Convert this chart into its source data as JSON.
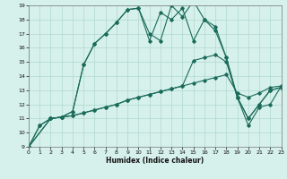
{
  "xlabel": "Humidex (Indice chaleur)",
  "xlim": [
    0,
    23
  ],
  "ylim": [
    9,
    19
  ],
  "yticks": [
    9,
    10,
    11,
    12,
    13,
    14,
    15,
    16,
    17,
    18,
    19
  ],
  "xticks": [
    0,
    1,
    2,
    3,
    4,
    5,
    6,
    7,
    8,
    9,
    10,
    11,
    12,
    13,
    14,
    15,
    16,
    17,
    18,
    19,
    20,
    21,
    22,
    23
  ],
  "bg_color": "#d6f0eb",
  "line_color": "#1a6b5a",
  "grid_color": "#b0d8d0",
  "series1_x": [
    0,
    1,
    2,
    3,
    4,
    5,
    6,
    7,
    8,
    9,
    10,
    11,
    12,
    13,
    14,
    15,
    16,
    17,
    18,
    19,
    20,
    21,
    22,
    23
  ],
  "series1_y": [
    9.0,
    10.5,
    11.0,
    11.1,
    11.5,
    14.8,
    16.3,
    17.0,
    17.8,
    18.7,
    18.8,
    17.0,
    16.5,
    19.0,
    18.2,
    19.3,
    18.0,
    17.2,
    15.3,
    12.5,
    11.0,
    12.0,
    13.0,
    13.2
  ],
  "series2_x": [
    0,
    1,
    2,
    3,
    4,
    5,
    6,
    7,
    8,
    9,
    10,
    11,
    12,
    13,
    14,
    15,
    16,
    17,
    18,
    19,
    20,
    21,
    22,
    23
  ],
  "series2_y": [
    9.0,
    10.5,
    11.0,
    11.1,
    11.5,
    14.8,
    16.3,
    17.0,
    17.8,
    18.7,
    18.8,
    16.5,
    18.5,
    18.0,
    18.8,
    16.5,
    18.0,
    17.5,
    15.3,
    12.5,
    11.0,
    12.0,
    13.0,
    13.2
  ],
  "series3_x": [
    0,
    2,
    3,
    4,
    5,
    6,
    7,
    8,
    9,
    10,
    11,
    12,
    13,
    14,
    15,
    16,
    17,
    18,
    19,
    20,
    21,
    22,
    23
  ],
  "series3_y": [
    9.0,
    11.0,
    11.1,
    11.2,
    11.4,
    11.6,
    11.8,
    12.0,
    12.3,
    12.5,
    12.7,
    12.9,
    13.1,
    13.3,
    13.5,
    13.7,
    13.9,
    14.1,
    12.8,
    12.5,
    12.8,
    13.2,
    13.3
  ],
  "series4_x": [
    0,
    2,
    3,
    4,
    5,
    6,
    7,
    8,
    9,
    10,
    11,
    12,
    13,
    14,
    15,
    16,
    17,
    18,
    19,
    20,
    21,
    22,
    23
  ],
  "series4_y": [
    9.0,
    11.0,
    11.1,
    11.2,
    11.4,
    11.6,
    11.8,
    12.0,
    12.3,
    12.5,
    12.7,
    12.9,
    13.1,
    13.3,
    15.1,
    15.3,
    15.5,
    15.0,
    12.5,
    10.5,
    11.8,
    12.0,
    13.3
  ]
}
